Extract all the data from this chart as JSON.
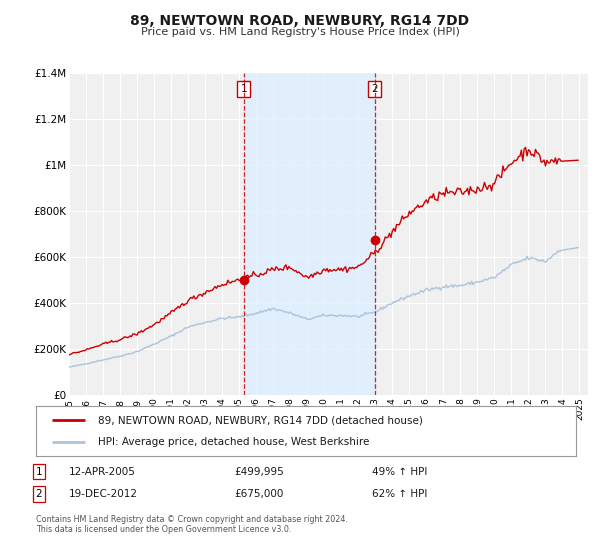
{
  "title": "89, NEWTOWN ROAD, NEWBURY, RG14 7DD",
  "subtitle": "Price paid vs. HM Land Registry's House Price Index (HPI)",
  "ylim": [
    0,
    1400000
  ],
  "xlim_start": 1995.0,
  "xlim_end": 2025.5,
  "hpi_color": "#aac4dd",
  "price_color": "#cc0000",
  "background_color": "#ffffff",
  "plot_bg_color": "#f0f0f0",
  "grid_color": "#ffffff",
  "shade_color": "#ddeeff",
  "marker1_x": 2005.28,
  "marker1_y": 499995,
  "marker2_x": 2012.97,
  "marker2_y": 675000,
  "marker1_date": "12-APR-2005",
  "marker1_price": "£499,995",
  "marker1_hpi": "49% ↑ HPI",
  "marker2_date": "19-DEC-2012",
  "marker2_price": "£675,000",
  "marker2_hpi": "62% ↑ HPI",
  "legend_line1": "89, NEWTOWN ROAD, NEWBURY, RG14 7DD (detached house)",
  "legend_line2": "HPI: Average price, detached house, West Berkshire",
  "footnote1": "Contains HM Land Registry data © Crown copyright and database right 2024.",
  "footnote2": "This data is licensed under the Open Government Licence v3.0.",
  "yticks": [
    0,
    200000,
    400000,
    600000,
    800000,
    1000000,
    1200000,
    1400000
  ],
  "ytick_labels": [
    "£0",
    "£200K",
    "£400K",
    "£600K",
    "£800K",
    "£1M",
    "£1.2M",
    "£1.4M"
  ],
  "xticks": [
    1995,
    1996,
    1997,
    1998,
    1999,
    2000,
    2001,
    2002,
    2003,
    2004,
    2005,
    2006,
    2007,
    2008,
    2009,
    2010,
    2011,
    2012,
    2013,
    2014,
    2015,
    2016,
    2017,
    2018,
    2019,
    2020,
    2021,
    2022,
    2023,
    2024,
    2025
  ]
}
